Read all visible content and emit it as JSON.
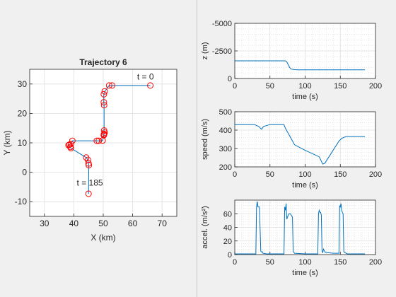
{
  "chart_data": [
    {
      "type": "line",
      "title": "Trajectory 6",
      "xlabel": "X (km)",
      "ylabel": "Y (km)",
      "xlim": [
        25,
        75
      ],
      "ylim": [
        -15,
        35
      ],
      "xticks": [
        30,
        40,
        50,
        60,
        70
      ],
      "yticks": [
        -10,
        0,
        10,
        20,
        30
      ],
      "grid": true,
      "colors": {
        "line": "#0072bd",
        "marker": "#ff0000"
      },
      "marker": "circle",
      "series": [
        {
          "x": [
            66,
            53,
            52,
            50.5,
            50.2,
            50.2,
            50.3,
            50.3,
            50.5,
            50.3,
            50.2,
            50.2,
            49.8,
            48.5,
            47.8,
            39.5,
            39,
            38.5,
            38.2,
            38.8,
            39,
            44.2,
            44.8,
            45,
            45.1,
            45
          ],
          "y": [
            29.5,
            29.5,
            29.5,
            27.5,
            26.5,
            23.8,
            22.8,
            14.2,
            13.5,
            13,
            12.8,
            12.6,
            10.8,
            10.7,
            10.7,
            10.7,
            9.6,
            9.4,
            9.2,
            8.6,
            8.2,
            5,
            4.2,
            3,
            2.4,
            -7.3
          ]
        }
      ],
      "annotations": [
        {
          "text": "t = 0",
          "x": 61.5,
          "y": 31.5
        },
        {
          "text": "t = 185",
          "x": 41,
          "y": -4.5
        }
      ]
    },
    {
      "type": "line",
      "xlabel": "time (s)",
      "ylabel": "z (m)",
      "xlim": [
        0,
        200
      ],
      "ylim": [
        0,
        -5000
      ],
      "xticks": [
        0,
        50,
        100,
        150,
        200
      ],
      "yticks": [
        -5000,
        -2500,
        0
      ],
      "ytick_labels": [
        "-5000",
        "-2500",
        "0"
      ],
      "y_reversed": true,
      "grid": true,
      "minor_grid": true,
      "colors": {
        "line": "#0072bd"
      },
      "series": [
        {
          "x": [
            0,
            72,
            74,
            76,
            78,
            80,
            85,
            90,
            100,
            120,
            150,
            185
          ],
          "y": [
            -1600,
            -1600,
            -1500,
            -1250,
            -1000,
            -850,
            -800,
            -790,
            -790,
            -790,
            -790,
            -790
          ]
        }
      ]
    },
    {
      "type": "line",
      "xlabel": "time (s)",
      "ylabel": "speed (m/s)",
      "xlim": [
        0,
        200
      ],
      "ylim": [
        200,
        500
      ],
      "xticks": [
        0,
        50,
        100,
        150,
        200
      ],
      "yticks": [
        200,
        300,
        400,
        500
      ],
      "grid": true,
      "minor_grid": true,
      "colors": {
        "line": "#0072bd"
      },
      "series": [
        {
          "x": [
            0,
            28,
            34,
            38,
            41,
            50,
            70,
            72,
            85,
            100,
            120,
            125,
            128,
            148,
            152,
            158,
            170,
            185
          ],
          "y": [
            430,
            430,
            420,
            405,
            420,
            430,
            430,
            410,
            320,
            290,
            255,
            215,
            220,
            340,
            355,
            365,
            365,
            365
          ]
        }
      ]
    },
    {
      "type": "line",
      "xlabel": "time (s)",
      "ylabel": "accel. (m/s²)",
      "xlim": [
        0,
        200
      ],
      "ylim": [
        0,
        80
      ],
      "xticks": [
        0,
        50,
        100,
        150,
        200
      ],
      "yticks": [
        0,
        20,
        40,
        60
      ],
      "grid": true,
      "minor_grid": true,
      "colors": {
        "line": "#0072bd"
      },
      "series": [
        {
          "x": [
            0,
            30,
            31,
            32,
            33,
            34,
            35,
            37,
            38,
            39,
            40,
            45,
            70,
            71,
            72,
            73,
            74,
            75,
            76,
            77,
            78,
            79,
            82,
            83,
            84,
            85,
            100,
            118,
            119,
            120,
            121,
            122,
            123,
            124,
            125,
            126,
            128,
            130,
            140,
            148,
            149,
            150,
            151,
            152,
            153,
            154,
            155,
            156,
            160,
            185
          ],
          "y": [
            1,
            1,
            70,
            78,
            70,
            70,
            70,
            5,
            4,
            4,
            2,
            1,
            1,
            70,
            65,
            75,
            52,
            55,
            58,
            60,
            60,
            60,
            55,
            5,
            3,
            2,
            1,
            1,
            60,
            65,
            62,
            62,
            58,
            5,
            3,
            8,
            4,
            3,
            2,
            2,
            72,
            70,
            75,
            65,
            62,
            60,
            5,
            3,
            1,
            1
          ]
        }
      ]
    }
  ]
}
